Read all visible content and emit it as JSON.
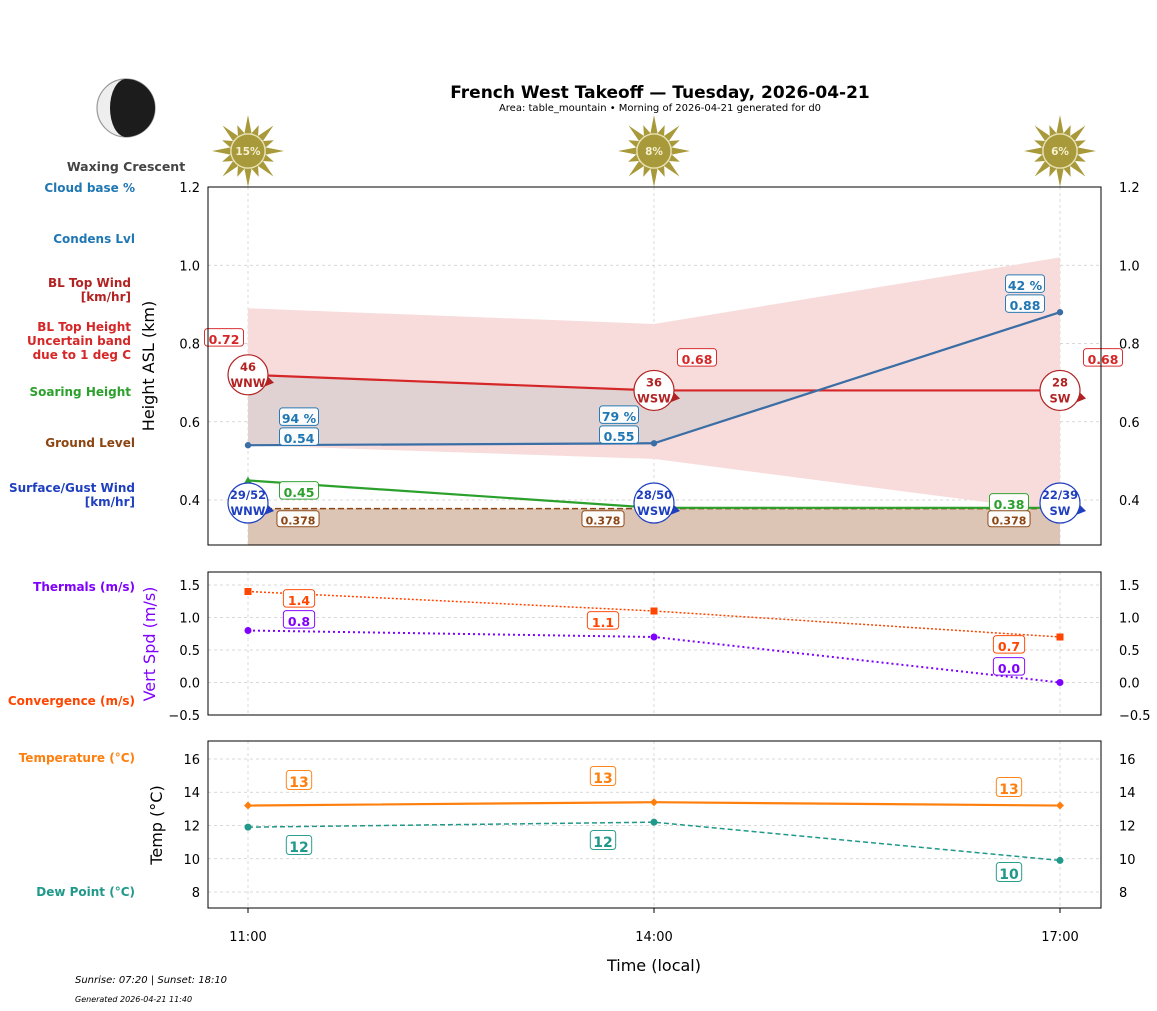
{
  "title": "French West Takeoff — Tuesday, 2026-04-21",
  "subtitle": "Area: table_mountain • Morning of 2026-04-21 generated for d0",
  "moon": {
    "phase": "Waxing Crescent",
    "illumination_side": "left"
  },
  "sun_cloud_cover": [
    "15%",
    "8%",
    "6%"
  ],
  "footer": {
    "sun": "Sunrise: 07:20 | Sunset: 18:10",
    "generated": "Generated 2026-04-21 11:40"
  },
  "side_labels": {
    "cloud_base": "Cloud base %",
    "condens": "Condens Lvl",
    "bl_wind": "BL Top Wind\n[km/hr]",
    "bl_height": "BL Top Height\nUncertain band\ndue to 1 deg C",
    "soaring": "Soaring Height",
    "ground": "Ground Level",
    "surface_wind": "Surface/Gust Wind\n[km/hr]",
    "thermals": "Thermals (m/s)",
    "convergence": "Convergence (m/s)",
    "temperature": "Temperature (°C)",
    "dewpoint": "Dew Point (°C)"
  },
  "colors": {
    "cloud": "#1f77b4",
    "cloud_line": "#3a6ea5",
    "bl": "#d62728",
    "bl_wind": "#b22222",
    "band": "#f8dcdc",
    "soaring": "#2ca02c",
    "ground": "#8b4513",
    "ground_fill": "#dcc5b5",
    "surface": "#1f3fbf",
    "thermal": "#7f00ff",
    "conv": "#ff4500",
    "temp": "#ff7f0e",
    "dew": "#20998a",
    "sun": "#a89a3a"
  },
  "chart_data": [
    {
      "type": "line",
      "ylabel": "Height ASL (km)",
      "x": [
        "11:00",
        "14:00",
        "17:00"
      ],
      "ylim": [
        0.285,
        1.2
      ],
      "yticks": [
        0.4,
        0.6,
        0.8,
        1.0,
        1.2
      ],
      "grid": true,
      "series": [
        {
          "name": "Condens Lvl",
          "values": [
            0.54,
            0.545,
            0.88
          ],
          "labels": [
            "0.54",
            "0.55",
            "0.88"
          ],
          "cloud_base_pct": [
            "94 %",
            "79 %",
            "42 %"
          ]
        },
        {
          "name": "BL Top Height",
          "values": [
            0.72,
            0.68,
            0.68
          ],
          "labels": [
            "0.72",
            "0.68",
            "0.68"
          ],
          "band_upper": [
            0.89,
            0.85,
            1.02
          ],
          "band_lower": [
            0.54,
            0.505,
            0.37
          ]
        },
        {
          "name": "Soaring Height",
          "values": [
            0.45,
            0.38,
            0.38
          ],
          "labels": [
            "0.45",
            "",
            "0.38"
          ]
        },
        {
          "name": "Ground Level",
          "values": [
            0.378,
            0.378,
            0.378
          ],
          "labels": [
            "0.378",
            "0.378",
            "0.378"
          ]
        }
      ],
      "bl_top_wind": [
        {
          "speed": "46",
          "dir": "WNW"
        },
        {
          "speed": "36",
          "dir": "WSW"
        },
        {
          "speed": "28",
          "dir": "SW"
        }
      ],
      "surface_wind": [
        {
          "speed": "29/52",
          "dir": "WNW"
        },
        {
          "speed": "28/50",
          "dir": "WSW"
        },
        {
          "speed": "22/39",
          "dir": "SW"
        }
      ]
    },
    {
      "type": "line",
      "ylabel": "Vert Spd (m/s)",
      "x": [
        "11:00",
        "14:00",
        "17:00"
      ],
      "ylim": [
        -0.5,
        1.7
      ],
      "yticks": [
        -0.5,
        0.0,
        0.5,
        1.0,
        1.5
      ],
      "grid": true,
      "series": [
        {
          "name": "Convergence (m/s)",
          "values": [
            1.4,
            1.1,
            0.7
          ],
          "labels": [
            "1.4",
            "1.1",
            "0.7"
          ]
        },
        {
          "name": "Thermals (m/s)",
          "values": [
            0.8,
            0.7,
            0.0
          ],
          "labels": [
            "0.8",
            "",
            "0.0"
          ]
        }
      ]
    },
    {
      "type": "line",
      "ylabel": "Temp (°C)",
      "xlabel": "Time (local)",
      "x": [
        "11:00",
        "14:00",
        "17:00"
      ],
      "ylim": [
        7.04,
        17.08
      ],
      "yticks": [
        8,
        10,
        12,
        14,
        16
      ],
      "grid": true,
      "series": [
        {
          "name": "Temperature (°C)",
          "values": [
            13.2,
            13.4,
            13.2
          ],
          "labels": [
            "13",
            "13",
            "13"
          ]
        },
        {
          "name": "Dew Point (°C)",
          "values": [
            11.9,
            12.2,
            9.9
          ],
          "labels": [
            "12",
            "12",
            "10"
          ]
        }
      ]
    }
  ]
}
